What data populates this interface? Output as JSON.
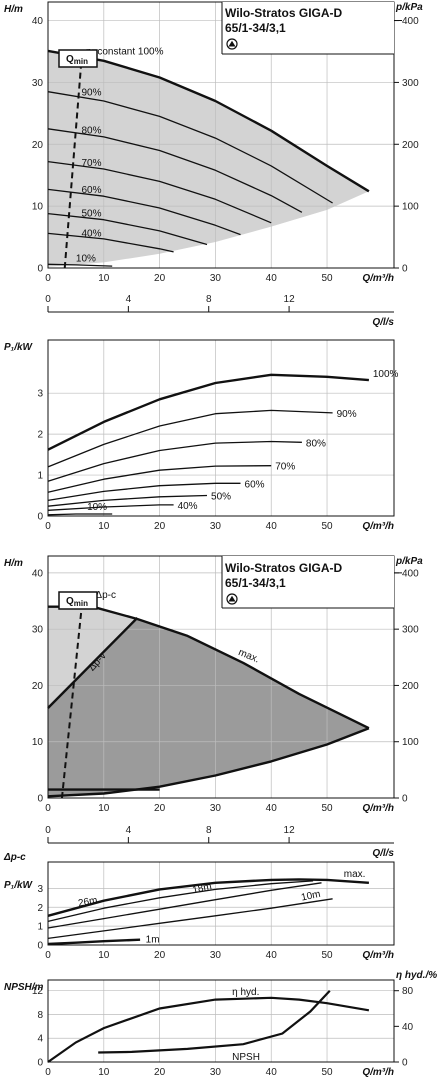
{
  "header": {
    "model_line1": "Wilo-Stratos GIGA-D",
    "model_line2": "65/1-34/3,1",
    "qmin_label": "Qmin",
    "qmin_sub": "min"
  },
  "chart_data": [
    {
      "type": "line",
      "title": "",
      "xlabel": "Q/m³/h",
      "ylabel": "H/m",
      "y2label": "p/kPa",
      "x2label": "Q/l/s",
      "xlim": [
        0,
        62
      ],
      "ylim": [
        0,
        43
      ],
      "xticks": [
        0,
        10,
        20,
        30,
        40,
        50
      ],
      "yticks": [
        0,
        10,
        20,
        30,
        40
      ],
      "y2ticks": [
        0,
        100,
        200,
        300,
        400
      ],
      "x2ticks": [
        0,
        4,
        8,
        12
      ],
      "qmin_line": {
        "x_bottom": 3,
        "x_top": 6
      },
      "series": [
        {
          "name": "n=constant 100%",
          "x": [
            0,
            10,
            20,
            30,
            40,
            50,
            57.5
          ],
          "y": [
            35.1,
            33.5,
            30.8,
            27.0,
            22.2,
            16.5,
            12.4
          ]
        },
        {
          "name": "90%",
          "x": [
            0,
            10,
            20,
            30,
            40,
            51
          ],
          "y": [
            28.5,
            27.0,
            24.5,
            21.0,
            16.5,
            10.5
          ]
        },
        {
          "name": "80%",
          "x": [
            0,
            10,
            20,
            30,
            40,
            45.5
          ],
          "y": [
            22.5,
            21.2,
            19.0,
            15.8,
            11.7,
            9.0
          ]
        },
        {
          "name": "70%",
          "x": [
            0,
            10,
            20,
            30,
            40
          ],
          "y": [
            17.2,
            16.0,
            14.0,
            11.1,
            7.3
          ]
        },
        {
          "name": "60%",
          "x": [
            0,
            10,
            20,
            30,
            34.5
          ],
          "y": [
            12.7,
            11.6,
            9.7,
            6.9,
            5.4
          ]
        },
        {
          "name": "50%",
          "x": [
            0,
            10,
            20,
            28.5
          ],
          "y": [
            8.8,
            7.8,
            6.0,
            3.8
          ]
        },
        {
          "name": "40%",
          "x": [
            0,
            10,
            20,
            22.5
          ],
          "y": [
            5.6,
            4.7,
            3.1,
            2.6
          ]
        },
        {
          "name": "10%",
          "x": [
            0,
            5,
            11.5
          ],
          "y": [
            0.6,
            0.5,
            0.3
          ]
        }
      ],
      "envelope_min": {
        "x": [
          0,
          10,
          20,
          30,
          40,
          50,
          57.5
        ],
        "y": [
          0.2,
          0.9,
          2.3,
          4.2,
          6.7,
          9.4,
          12.4
        ]
      }
    },
    {
      "type": "line",
      "title": "",
      "xlabel": "Q/m³/h",
      "ylabel": "P₁/kW",
      "xlim": [
        0,
        62
      ],
      "ylim": [
        0,
        4.3
      ],
      "xticks": [
        0,
        10,
        20,
        30,
        40,
        50
      ],
      "yticks": [
        0,
        1,
        2,
        3
      ],
      "series": [
        {
          "name": "100%",
          "x": [
            0,
            10,
            20,
            30,
            40,
            50,
            57.5
          ],
          "y": [
            1.62,
            2.3,
            2.85,
            3.25,
            3.45,
            3.4,
            3.32
          ]
        },
        {
          "name": "90%",
          "x": [
            0,
            10,
            20,
            30,
            40,
            51
          ],
          "y": [
            1.2,
            1.75,
            2.2,
            2.5,
            2.58,
            2.52
          ]
        },
        {
          "name": "80%",
          "x": [
            0,
            10,
            20,
            30,
            40,
            45.5
          ],
          "y": [
            0.85,
            1.28,
            1.6,
            1.78,
            1.82,
            1.8
          ]
        },
        {
          "name": "70%",
          "x": [
            0,
            10,
            20,
            30,
            40
          ],
          "y": [
            0.58,
            0.9,
            1.12,
            1.22,
            1.23
          ]
        },
        {
          "name": "60%",
          "x": [
            0,
            10,
            20,
            30,
            34.5
          ],
          "y": [
            0.38,
            0.6,
            0.74,
            0.8,
            0.8
          ]
        },
        {
          "name": "50%",
          "x": [
            0,
            10,
            20,
            28.5
          ],
          "y": [
            0.24,
            0.38,
            0.47,
            0.5
          ]
        },
        {
          "name": "40%",
          "x": [
            0,
            10,
            20,
            22.5
          ],
          "y": [
            0.14,
            0.22,
            0.27,
            0.27
          ]
        },
        {
          "name": "10%",
          "x": [
            0,
            5,
            11.5
          ],
          "y": [
            0.03,
            0.05,
            0.05
          ]
        }
      ]
    },
    {
      "type": "area",
      "title": "",
      "xlabel": "Q/m³/h",
      "ylabel": "H/m",
      "y2label": "p/kPa",
      "x2label": "Q/l/s",
      "xlim": [
        0,
        62
      ],
      "ylim": [
        0,
        43
      ],
      "xticks": [
        0,
        10,
        20,
        30,
        40,
        50
      ],
      "yticks": [
        0,
        10,
        20,
        30,
        40
      ],
      "y2ticks": [
        0,
        100,
        200,
        300,
        400
      ],
      "x2ticks": [
        0,
        4,
        8,
        12
      ],
      "qmin_line": {
        "x_bottom": 2.5,
        "x_top": 6
      },
      "series": [
        {
          "name": "Δp-c",
          "x": [
            0,
            8
          ],
          "y": [
            34,
            34
          ]
        },
        {
          "name": "Δp-v",
          "x": [
            0,
            16
          ],
          "y": [
            16,
            32
          ]
        },
        {
          "name": "max.",
          "x": [
            8,
            16,
            25,
            35,
            45,
            57.5
          ],
          "y": [
            34,
            31.8,
            28.8,
            24.0,
            18.5,
            12.4
          ]
        },
        {
          "name": "",
          "x": [
            0,
            10,
            20,
            30,
            40,
            50,
            57.5
          ],
          "y": [
            0.3,
            0.8,
            2.0,
            4.0,
            6.5,
            9.5,
            12.4
          ]
        },
        {
          "name": "",
          "x": [
            0,
            20
          ],
          "y": [
            1.5,
            1.5
          ]
        }
      ]
    },
    {
      "type": "line",
      "title": "",
      "xlabel": "Q/m³/h",
      "ylabel": "P₁/kW",
      "ylabel_top": "Δp-c",
      "xlim": [
        0,
        62
      ],
      "ylim": [
        0,
        4.4
      ],
      "xticks": [
        0,
        10,
        20,
        30,
        40,
        50
      ],
      "yticks": [
        0,
        1,
        2,
        3
      ],
      "series": [
        {
          "name": "max.",
          "x": [
            0,
            10,
            20,
            30,
            40,
            45,
            50,
            57.5
          ],
          "y": [
            1.55,
            2.35,
            2.95,
            3.3,
            3.45,
            3.48,
            3.45,
            3.3
          ]
        },
        {
          "name": "26m",
          "x": [
            0,
            10,
            20,
            30,
            40,
            47.5
          ],
          "y": [
            1.25,
            1.95,
            2.5,
            2.95,
            3.25,
            3.4
          ]
        },
        {
          "name": "18m",
          "x": [
            0,
            10,
            20,
            30,
            40,
            49
          ],
          "y": [
            0.9,
            1.4,
            1.9,
            2.4,
            2.9,
            3.3
          ]
        },
        {
          "name": "10m",
          "x": [
            0,
            10,
            20,
            30,
            40,
            51
          ],
          "y": [
            0.35,
            0.75,
            1.15,
            1.55,
            1.95,
            2.45
          ]
        },
        {
          "name": "1m",
          "x": [
            0,
            5,
            10,
            16.5
          ],
          "y": [
            0.06,
            0.12,
            0.2,
            0.28
          ]
        }
      ]
    },
    {
      "type": "line",
      "title": "",
      "xlabel": "Q/m³/h",
      "ylabel": "NPSH/m",
      "y2label": "η hyd./%",
      "xlim": [
        0,
        62
      ],
      "ylim": [
        0,
        13.8
      ],
      "xticks": [
        0,
        10,
        20,
        30,
        40,
        50
      ],
      "yticks": [
        0,
        4,
        8,
        12
      ],
      "y2ticks": [
        0,
        40,
        80
      ],
      "series": [
        {
          "name": "η hyd.",
          "axis": "right",
          "x": [
            0,
            5,
            10,
            20,
            30,
            40,
            45,
            50,
            57.5
          ],
          "y": [
            0,
            22,
            38,
            60,
            70,
            72,
            70,
            66,
            58
          ]
        },
        {
          "name": "NPSH",
          "axis": "left",
          "x": [
            9,
            15,
            25,
            35,
            42,
            47,
            50.5
          ],
          "y": [
            1.6,
            1.7,
            2.2,
            3.0,
            4.8,
            8.5,
            12.0
          ]
        }
      ]
    }
  ]
}
